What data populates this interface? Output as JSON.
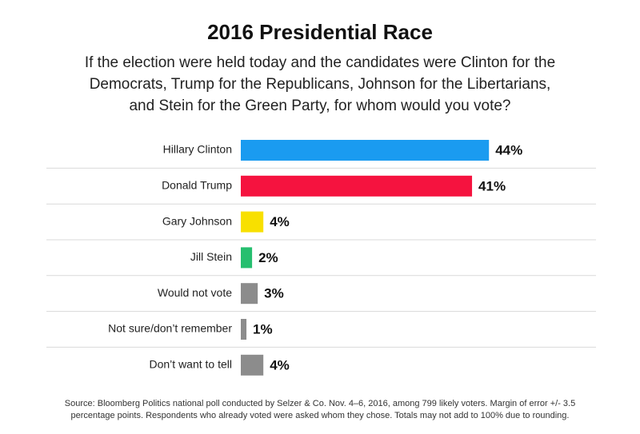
{
  "chart_data": {
    "type": "bar",
    "orientation": "horizontal",
    "title": "2016 Presidential Race",
    "subtitle": [
      "If the election were held today and the candidates were Clinton for the",
      "Democrats, Trump for the Republicans, Johnson for the Libertarians,",
      "and Stein for the Green Party, for whom would you vote?"
    ],
    "categories": [
      "Hillary Clinton",
      "Donald Trump",
      "Gary Johnson",
      "Jill Stein",
      "Would not vote",
      "Not sure/don’t remember",
      "Don’t want to tell"
    ],
    "values": [
      44,
      41,
      4,
      2,
      3,
      1,
      4
    ],
    "value_labels": [
      "44%",
      "41%",
      "4%",
      "2%",
      "3%",
      "1%",
      "4%"
    ],
    "colors": [
      "#1a9bf0",
      "#f5133f",
      "#f8e000",
      "#26bf6f",
      "#8c8c8c",
      "#8c8c8c",
      "#8c8c8c"
    ],
    "source": [
      "Source: Bloomberg Politics national poll conducted by Selzer & Co. Nov. 4–6, 2016, among 799 likely voters. Margin of error +/- 3.5",
      "percentage points. Respondents who already voted were asked whom they chose. Totals may not add to 100% due to rounding."
    ]
  }
}
